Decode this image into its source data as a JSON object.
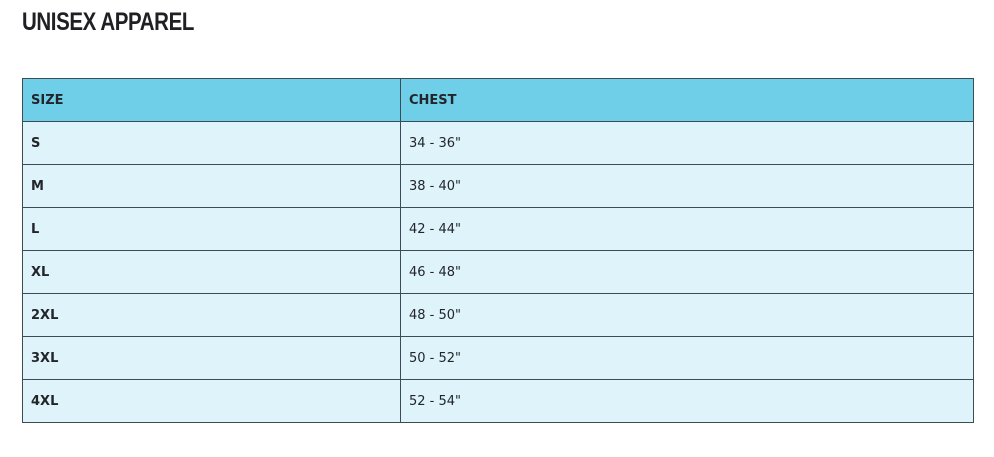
{
  "title": "UNISEX APPAREL",
  "colors": {
    "header_bg": "#6fcfe8",
    "row_bg": "#dff3fa",
    "border": "#3d4b55"
  },
  "table": {
    "headers": [
      "SIZE",
      "CHEST"
    ],
    "rows": [
      [
        "S",
        "34 - 36\""
      ],
      [
        "M",
        "38 - 40\""
      ],
      [
        "L",
        "42 - 44\""
      ],
      [
        "XL",
        "46 - 48\""
      ],
      [
        "2XL",
        "48 - 50\""
      ],
      [
        "3XL",
        "50 - 52\""
      ],
      [
        "4XL",
        "52 - 54\""
      ]
    ]
  }
}
